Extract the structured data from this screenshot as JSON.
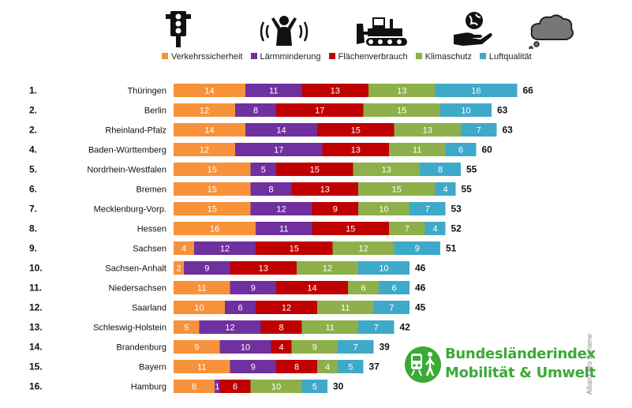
{
  "legend": [
    {
      "label": "Verkehrssicherheit",
      "color": "#f7923a",
      "icon": "traffic-light-icon"
    },
    {
      "label": "Lärmminderung",
      "color": "#7030a0",
      "icon": "noise-person-icon"
    },
    {
      "label": "Flächenverbrauch",
      "color": "#c00000",
      "icon": "bulldozer-icon"
    },
    {
      "label": "Klimaschutz",
      "color": "#8db04a",
      "icon": "globe-in-hand-icon"
    },
    {
      "label": "Luftqualität",
      "color": "#3fa9c9",
      "icon": "smoke-cloud-icon"
    }
  ],
  "chart_data": {
    "type": "bar",
    "orientation": "horizontal",
    "stacked": true,
    "grid": false,
    "legend_position": "top",
    "ranks": [
      "1.",
      "2.",
      "2.",
      "4.",
      "5.",
      "6.",
      "7.",
      "8.",
      "9.",
      "10.",
      "11.",
      "12.",
      "13.",
      "14.",
      "15.",
      "16."
    ],
    "categories": [
      "Thüringen",
      "Berlin",
      "Rheinland-Pfalz",
      "Baden-Württemberg",
      "Nordrhein-Westfalen",
      "Bremen",
      "Mecklenburg-Vorp.",
      "Hessen",
      "Sachsen",
      "Sachsen-Anhalt",
      "Niedersachsen",
      "Saarland",
      "Schleswig-Holstein",
      "Brandenburg",
      "Bayern",
      "Hamburg"
    ],
    "series": [
      {
        "name": "Verkehrssicherheit",
        "values": [
          14,
          12,
          14,
          12,
          15,
          15,
          15,
          16,
          4,
          2,
          11,
          10,
          5,
          9,
          11,
          8
        ]
      },
      {
        "name": "Lärmminderung",
        "values": [
          11,
          8,
          14,
          17,
          5,
          8,
          12,
          11,
          12,
          9,
          9,
          6,
          12,
          10,
          9,
          1
        ]
      },
      {
        "name": "Flächenverbrauch",
        "values": [
          13,
          17,
          15,
          13,
          15,
          13,
          9,
          15,
          15,
          13,
          14,
          12,
          8,
          4,
          8,
          6
        ]
      },
      {
        "name": "Klimaschutz",
        "values": [
          13,
          15,
          13,
          11,
          13,
          15,
          10,
          7,
          12,
          12,
          6,
          11,
          11,
          9,
          4,
          10
        ]
      },
      {
        "name": "Luftqualität",
        "values": [
          16,
          10,
          7,
          6,
          8,
          4,
          7,
          4,
          9,
          10,
          6,
          7,
          7,
          7,
          5,
          5
        ]
      }
    ],
    "totals": [
      66,
      63,
      63,
      60,
      55,
      55,
      53,
      52,
      51,
      46,
      46,
      45,
      42,
      39,
      37,
      30
    ]
  },
  "logo": {
    "line1": "Bundesländerindex",
    "line2": "Mobilität & Umwelt"
  },
  "credit": "Allianz pro Schiene"
}
